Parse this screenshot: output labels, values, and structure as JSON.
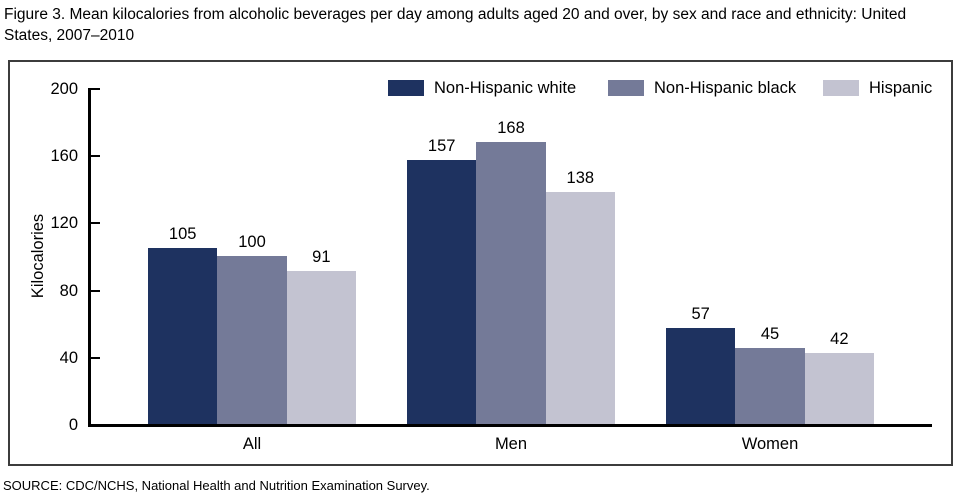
{
  "chart_data": {
    "type": "bar",
    "title": "Figure 3. Mean kilocalories from alcoholic beverages per day among adults aged 20 and over, by sex and race and ethnicity: United States, 2007–2010",
    "ylabel": "Kilocalories",
    "ylim": [
      0,
      200
    ],
    "yticks": [
      0,
      40,
      80,
      120,
      160,
      200
    ],
    "categories": [
      "All",
      "Men",
      "Women"
    ],
    "series": [
      {
        "name": "Non-Hispanic white",
        "color": "#1e3260",
        "values": [
          105,
          157,
          57
        ]
      },
      {
        "name": "Non-Hispanic black",
        "color": "#747a98",
        "values": [
          100,
          168,
          45
        ]
      },
      {
        "name": "Hispanic",
        "color": "#c3c3d1",
        "values": [
          91,
          138,
          42
        ]
      }
    ],
    "legend_position": "top",
    "grid": false,
    "source": "SOURCE: CDC/NCHS, National Health and Nutrition Examination Survey."
  }
}
